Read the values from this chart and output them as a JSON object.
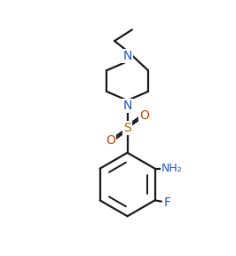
{
  "background_color": "#ffffff",
  "line_color": "#1a1a1a",
  "atom_color_N": "#2255bb",
  "atom_color_O": "#cc4400",
  "atom_color_F": "#2255bb",
  "atom_color_S": "#aa6600",
  "line_width": 1.6,
  "figsize": [
    2.66,
    2.88
  ],
  "dpi": 100,
  "xlim": [
    0,
    10
  ],
  "ylim": [
    0,
    10.8
  ]
}
